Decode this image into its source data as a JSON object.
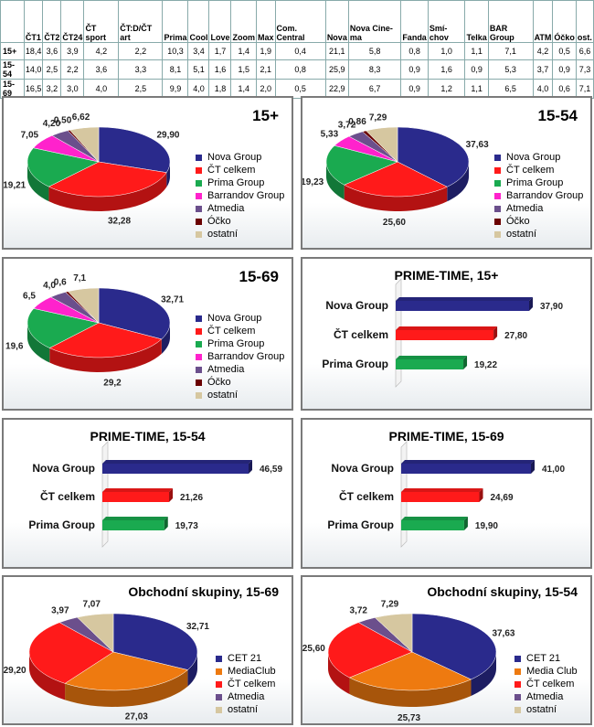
{
  "table": {
    "headers": [
      "",
      "ČT1",
      "ČT2",
      "ČT24",
      "ČT sport",
      "ČT:D/ČT art",
      "Prima",
      "Cool",
      "Love",
      "Zoom",
      "Max",
      "Com. Central",
      "Nova",
      "Nova Cine-ma",
      "Fanda",
      "Smí-chov",
      "Telka",
      "BAR Group",
      "ATM",
      "Óčko",
      "ost."
    ],
    "rows": [
      [
        "15+",
        "18,4",
        "3,6",
        "3,9",
        "4,2",
        "2,2",
        "10,3",
        "3,4",
        "1,7",
        "1,4",
        "1,9",
        "0,4",
        "21,1",
        "5,8",
        "0,8",
        "1,0",
        "1,1",
        "7,1",
        "4,2",
        "0,5",
        "6,6"
      ],
      [
        "15-54",
        "14,0",
        "2,5",
        "2,2",
        "3,6",
        "3,3",
        "8,1",
        "5,1",
        "1,6",
        "1,5",
        "2,1",
        "0,8",
        "25,9",
        "8,3",
        "0,9",
        "1,6",
        "0,9",
        "5,3",
        "3,7",
        "0,9",
        "7,3"
      ],
      [
        "15-69",
        "16,5",
        "3,2",
        "3,0",
        "4,0",
        "2,5",
        "9,9",
        "4,0",
        "1,8",
        "1,4",
        "2,0",
        "0,5",
        "22,9",
        "6,7",
        "0,9",
        "1,2",
        "1,1",
        "6,5",
        "4,0",
        "0,6",
        "7,1"
      ]
    ]
  },
  "colors": {
    "nova": "#2a2a8c",
    "ct": "#ff1a1a",
    "prima": "#1aaa50",
    "barrandov": "#ff22cc",
    "atmedia": "#6b4f8c",
    "ocko": "#6a0000",
    "ostatni": "#d6c7a0",
    "mediaclub": "#ee7a10"
  },
  "chart_data": [
    {
      "type": "pie",
      "title": "15+",
      "series": [
        {
          "label": "Nova Group",
          "value": 29.9,
          "text": "29,90",
          "color": "nova"
        },
        {
          "label": "ČT celkem",
          "value": 32.28,
          "text": "32,28",
          "color": "ct"
        },
        {
          "label": "Prima Group",
          "value": 19.21,
          "text": "19,21",
          "color": "prima"
        },
        {
          "label": "Barrandov Group",
          "value": 7.05,
          "text": "7,05",
          "color": "barrandov"
        },
        {
          "label": "Atmedia",
          "value": 4.2,
          "text": "4,20",
          "color": "atmedia"
        },
        {
          "label": "Óčko",
          "value": 0.5,
          "text": "0,50",
          "color": "ocko"
        },
        {
          "label": "ostatní",
          "value": 6.62,
          "text": "6,62",
          "color": "ostatni"
        }
      ]
    },
    {
      "type": "pie",
      "title": "15-54",
      "series": [
        {
          "label": "Nova Group",
          "value": 37.63,
          "text": "37,63",
          "color": "nova"
        },
        {
          "label": "ČT celkem",
          "value": 25.6,
          "text": "25,60",
          "color": "ct"
        },
        {
          "label": "Prima Group",
          "value": 19.23,
          "text": "19,23",
          "color": "prima"
        },
        {
          "label": "Barrandov Group",
          "value": 5.33,
          "text": "5,33",
          "color": "barrandov"
        },
        {
          "label": "Atmedia",
          "value": 3.72,
          "text": "3,72",
          "color": "atmedia"
        },
        {
          "label": "Óčko",
          "value": 0.86,
          "text": "0,86",
          "color": "ocko"
        },
        {
          "label": "ostatní",
          "value": 7.29,
          "text": "7,29",
          "color": "ostatni"
        }
      ]
    },
    {
      "type": "pie",
      "title": "15-69",
      "series": [
        {
          "label": "Nova Group",
          "value": 32.71,
          "text": "32,71",
          "color": "nova"
        },
        {
          "label": "ČT celkem",
          "value": 29.2,
          "text": "29,2",
          "color": "ct"
        },
        {
          "label": "Prima Group",
          "value": 19.6,
          "text": "19,6",
          "color": "prima"
        },
        {
          "label": "Barrandov Group",
          "value": 6.5,
          "text": "6,5",
          "color": "barrandov"
        },
        {
          "label": "Atmedia",
          "value": 4.0,
          "text": "4,0",
          "color": "atmedia"
        },
        {
          "label": "Óčko",
          "value": 0.6,
          "text": "0,6",
          "color": "ocko"
        },
        {
          "label": "ostatní",
          "value": 7.1,
          "text": "7,1",
          "color": "ostatni"
        }
      ]
    },
    {
      "type": "bar",
      "title": "PRIME-TIME, 15+",
      "categories": [
        "Nova Group",
        "ČT celkem",
        "Prima Group"
      ],
      "values": [
        37.9,
        27.8,
        19.22
      ],
      "texts": [
        "37,90",
        "27,80",
        "19,22"
      ],
      "colors": [
        "nova",
        "ct",
        "prima"
      ]
    },
    {
      "type": "bar",
      "title": "PRIME-TIME, 15-54",
      "categories": [
        "Nova Group",
        "ČT celkem",
        "Prima Group"
      ],
      "values": [
        46.59,
        21.26,
        19.73
      ],
      "texts": [
        "46,59",
        "21,26",
        "19,73"
      ],
      "colors": [
        "nova",
        "ct",
        "prima"
      ]
    },
    {
      "type": "bar",
      "title": "PRIME-TIME, 15-69",
      "categories": [
        "Nova Group",
        "ČT celkem",
        "Prima Group"
      ],
      "values": [
        41.0,
        24.69,
        19.9
      ],
      "texts": [
        "41,00",
        "24,69",
        "19,90"
      ],
      "colors": [
        "nova",
        "ct",
        "prima"
      ]
    },
    {
      "type": "pie",
      "title": "Obchodní skupiny, 15-69",
      "series": [
        {
          "label": "CET 21",
          "value": 32.71,
          "text": "32,71",
          "color": "nova"
        },
        {
          "label": "MediaClub",
          "value": 27.03,
          "text": "27,03",
          "color": "mediaclub"
        },
        {
          "label": "ČT celkem",
          "value": 29.2,
          "text": "29,20",
          "color": "ct"
        },
        {
          "label": "Atmedia",
          "value": 3.97,
          "text": "3,97",
          "color": "atmedia"
        },
        {
          "label": "ostatní",
          "value": 7.07,
          "text": "7,07",
          "color": "ostatni"
        }
      ]
    },
    {
      "type": "pie",
      "title": "Obchodní skupiny, 15-54",
      "series": [
        {
          "label": "CET 21",
          "value": 37.63,
          "text": "37,63",
          "color": "nova"
        },
        {
          "label": "Media Club",
          "value": 25.73,
          "text": "25,73",
          "color": "mediaclub"
        },
        {
          "label": "ČT celkem",
          "value": 25.6,
          "text": "25,60",
          "color": "ct"
        },
        {
          "label": "Atmedia",
          "value": 3.72,
          "text": "3,72",
          "color": "atmedia"
        },
        {
          "label": "ostatní",
          "value": 7.29,
          "text": "7,29",
          "color": "ostatni"
        }
      ]
    }
  ]
}
